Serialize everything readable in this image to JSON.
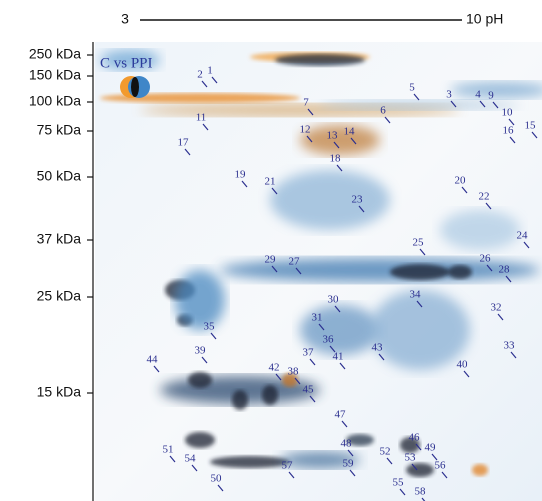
{
  "axis": {
    "ph_start": "3",
    "ph_end": "10 pH",
    "mass_labels": [
      "250 kDa",
      "150 kDa",
      "100 kDa",
      "75 kDa",
      "50 kDa",
      "37 kDa",
      "25 kDa",
      "15 kDa"
    ]
  },
  "comparison": "C vs PPI",
  "spots": [
    "1",
    "2",
    "3",
    "4",
    "5",
    "6",
    "7",
    "9",
    "10",
    "11",
    "12",
    "13",
    "14",
    "15",
    "16",
    "17",
    "18",
    "19",
    "20",
    "21",
    "22",
    "23",
    "24",
    "25",
    "26",
    "27",
    "28",
    "29",
    "30",
    "31",
    "32",
    "33",
    "34",
    "35",
    "36",
    "37",
    "38",
    "39",
    "40",
    "41",
    "42",
    "43",
    "44",
    "45",
    "46",
    "47",
    "48",
    "49",
    "50",
    "51",
    "52",
    "53",
    "54",
    "55",
    "56",
    "57",
    "58",
    "59"
  ]
}
